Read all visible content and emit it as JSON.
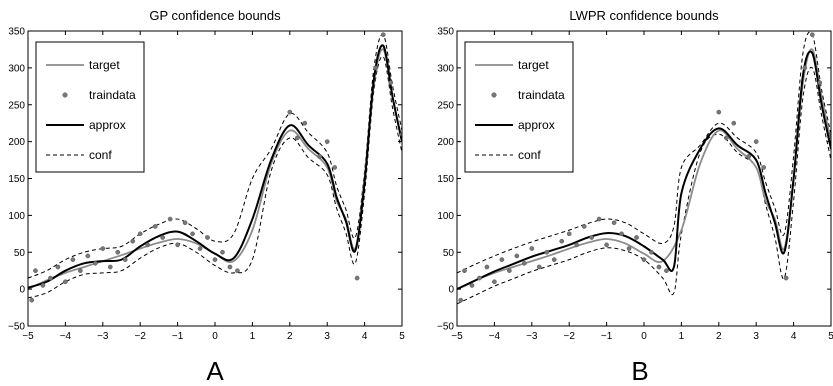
{
  "chart_data": [
    {
      "type": "line",
      "panel_label": "A",
      "title": "GP confidence bounds",
      "xlim": [
        -5,
        5
      ],
      "ylim": [
        -50,
        350
      ],
      "x_ticks": [
        -5,
        -4,
        -3,
        -2,
        -1,
        0,
        1,
        2,
        3,
        4,
        5
      ],
      "y_ticks": [
        -50,
        0,
        50,
        100,
        150,
        200,
        250,
        300,
        350
      ],
      "grid": false,
      "legend_position": "top-left",
      "legend": [
        "target",
        "traindata",
        "approx",
        "conf"
      ],
      "series": [
        {
          "name": "target",
          "color": "#8c8c8c",
          "style": "solid",
          "x": [
            -5,
            -4.5,
            -4,
            -3.5,
            -3,
            -2.5,
            -2,
            -1.5,
            -1,
            -0.5,
            0,
            0.5,
            1,
            1.5,
            2,
            2.5,
            3,
            3.25,
            3.5,
            3.75,
            4,
            4.25,
            4.5,
            4.75,
            5
          ],
          "y": [
            0,
            12,
            22,
            30,
            38,
            46,
            55,
            63,
            68,
            62,
            48,
            38,
            80,
            170,
            215,
            190,
            165,
            120,
            95,
            55,
            150,
            280,
            325,
            260,
            200
          ]
        },
        {
          "name": "approx",
          "color": "#000000",
          "style": "solid",
          "x": [
            -5,
            -4.5,
            -4,
            -3.5,
            -3,
            -2.5,
            -2,
            -1.5,
            -1,
            -0.5,
            0,
            0.5,
            1,
            1.5,
            2,
            2.5,
            3,
            3.25,
            3.5,
            3.75,
            4,
            4.25,
            4.5,
            4.75,
            5
          ],
          "y": [
            2,
            10,
            25,
            35,
            38,
            40,
            58,
            72,
            78,
            65,
            48,
            42,
            95,
            175,
            222,
            195,
            170,
            125,
            92,
            52,
            145,
            285,
            330,
            260,
            200
          ]
        },
        {
          "name": "conf",
          "color": "#000000",
          "style": "dashed",
          "bound": "upper",
          "x": [
            -5,
            -4.5,
            -4,
            -3.5,
            -3,
            -2.5,
            -2,
            -1.5,
            -1,
            -0.5,
            0,
            0.5,
            1,
            1.5,
            2,
            2.5,
            3,
            3.25,
            3.5,
            3.75,
            4,
            4.25,
            4.5,
            4.75,
            5
          ],
          "y": [
            15,
            25,
            40,
            50,
            55,
            58,
            75,
            88,
            95,
            82,
            65,
            75,
            150,
            190,
            238,
            212,
            185,
            140,
            108,
            70,
            160,
            300,
            345,
            275,
            215
          ]
        },
        {
          "name": "conf",
          "color": "#000000",
          "style": "dashed",
          "bound": "lower",
          "x": [
            -5,
            -4.5,
            -4,
            -3.5,
            -3,
            -2.5,
            -2,
            -1.5,
            -1,
            -0.5,
            0,
            0.5,
            1,
            1.5,
            2,
            2.5,
            3,
            3.25,
            3.5,
            3.75,
            4,
            4.25,
            4.5,
            4.75,
            5
          ],
          "y": [
            -12,
            -5,
            10,
            20,
            22,
            25,
            42,
            56,
            62,
            50,
            32,
            22,
            40,
            160,
            205,
            178,
            155,
            110,
            76,
            35,
            130,
            270,
            315,
            245,
            185
          ]
        }
      ],
      "traindata": {
        "name": "traindata",
        "color": "#777777",
        "marker": "circle",
        "x": [
          -4.9,
          -4.8,
          -4.6,
          -4.4,
          -4.2,
          -4.0,
          -3.8,
          -3.6,
          -3.4,
          -3.2,
          -3.0,
          -2.8,
          -2.6,
          -2.4,
          -2.2,
          -2.0,
          -1.8,
          -1.6,
          -1.4,
          -1.2,
          -1.0,
          -0.8,
          -0.6,
          -0.4,
          -0.2,
          0.0,
          0.2,
          0.4,
          0.6,
          2.0,
          2.2,
          2.4,
          2.8,
          3.0,
          3.2,
          3.8,
          4.3,
          4.5,
          4.7,
          5.0
        ],
        "y": [
          -15,
          25,
          5,
          15,
          30,
          10,
          40,
          25,
          45,
          35,
          55,
          30,
          50,
          40,
          65,
          75,
          60,
          85,
          70,
          95,
          60,
          90,
          75,
          55,
          70,
          40,
          50,
          30,
          25,
          240,
          205,
          225,
          180,
          200,
          165,
          15,
          300,
          345,
          280,
          210
        ]
      }
    },
    {
      "type": "line",
      "panel_label": "B",
      "title": "LWPR confidence bounds",
      "xlim": [
        -5,
        5
      ],
      "ylim": [
        -50,
        350
      ],
      "x_ticks": [
        -5,
        -4,
        -3,
        -2,
        -1,
        0,
        1,
        2,
        3,
        4,
        5
      ],
      "y_ticks": [
        -50,
        0,
        50,
        100,
        150,
        200,
        250,
        300,
        350
      ],
      "grid": false,
      "legend_position": "top-left",
      "legend": [
        "target",
        "traindata",
        "approx",
        "conf"
      ],
      "series": [
        {
          "name": "target",
          "color": "#8c8c8c",
          "style": "solid",
          "x": [
            -5,
            -4.5,
            -4,
            -3.5,
            -3,
            -2.5,
            -2,
            -1.5,
            -1,
            -0.5,
            0,
            0.5,
            1,
            1.5,
            2,
            2.5,
            3,
            3.25,
            3.5,
            3.75,
            4,
            4.25,
            4.5,
            4.75,
            5
          ],
          "y": [
            0,
            12,
            22,
            30,
            38,
            46,
            55,
            63,
            68,
            62,
            48,
            38,
            80,
            170,
            215,
            190,
            165,
            120,
            95,
            55,
            150,
            280,
            325,
            260,
            200
          ]
        },
        {
          "name": "approx",
          "color": "#000000",
          "style": "solid",
          "x": [
            -5,
            -4.5,
            -4,
            -3.5,
            -3,
            -2.5,
            -2,
            -1.5,
            -1,
            -0.5,
            0,
            0.5,
            0.8,
            1,
            1.5,
            2,
            2.5,
            3,
            3.25,
            3.5,
            3.75,
            4,
            4.25,
            4.5,
            4.75,
            5
          ],
          "y": [
            0,
            12,
            24,
            34,
            44,
            52,
            60,
            70,
            76,
            72,
            58,
            40,
            30,
            130,
            190,
            218,
            195,
            175,
            130,
            90,
            50,
            150,
            290,
            320,
            250,
            190
          ]
        },
        {
          "name": "conf",
          "color": "#000000",
          "style": "dashed",
          "bound": "upper",
          "x": [
            -5,
            -4.5,
            -4,
            -3.5,
            -3,
            -2.5,
            -2,
            -1.5,
            -1,
            -0.5,
            0,
            0.5,
            0.8,
            1,
            1.5,
            2,
            2.5,
            3,
            3.25,
            3.5,
            3.75,
            4,
            4.25,
            4.5,
            4.75,
            5
          ],
          "y": [
            22,
            34,
            45,
            55,
            64,
            72,
            80,
            89,
            95,
            90,
            75,
            62,
            85,
            165,
            195,
            225,
            205,
            185,
            145,
            110,
            75,
            180,
            320,
            345,
            270,
            210
          ]
        },
        {
          "name": "conf",
          "color": "#000000",
          "style": "dashed",
          "bound": "lower",
          "x": [
            -5,
            -4.5,
            -4,
            -3.5,
            -3,
            -2.5,
            -2,
            -1.5,
            -1,
            -0.5,
            0,
            0.5,
            0.8,
            1,
            1.5,
            2,
            2.5,
            3,
            3.25,
            3.5,
            3.75,
            4,
            4.25,
            4.5,
            4.75,
            5
          ],
          "y": [
            -20,
            -8,
            4,
            14,
            24,
            32,
            40,
            50,
            56,
            52,
            40,
            15,
            -5,
            75,
            185,
            210,
            185,
            165,
            115,
            70,
            15,
            120,
            260,
            300,
            235,
            175
          ]
        }
      ],
      "traindata": {
        "name": "traindata",
        "color": "#777777",
        "marker": "circle",
        "x": [
          -4.9,
          -4.8,
          -4.6,
          -4.4,
          -4.2,
          -4.0,
          -3.8,
          -3.6,
          -3.4,
          -3.2,
          -3.0,
          -2.8,
          -2.6,
          -2.4,
          -2.2,
          -2.0,
          -1.8,
          -1.6,
          -1.4,
          -1.2,
          -1.0,
          -0.8,
          -0.6,
          -0.4,
          -0.2,
          0.0,
          0.2,
          0.4,
          0.6,
          2.0,
          2.2,
          2.4,
          2.8,
          3.0,
          3.2,
          3.8,
          4.3,
          4.5,
          4.7,
          5.0
        ],
        "y": [
          -15,
          25,
          5,
          15,
          30,
          10,
          40,
          25,
          45,
          35,
          55,
          30,
          50,
          40,
          65,
          75,
          60,
          85,
          70,
          95,
          60,
          90,
          75,
          55,
          70,
          40,
          50,
          30,
          25,
          240,
          205,
          225,
          180,
          200,
          165,
          15,
          300,
          345,
          280,
          210
        ]
      }
    }
  ]
}
